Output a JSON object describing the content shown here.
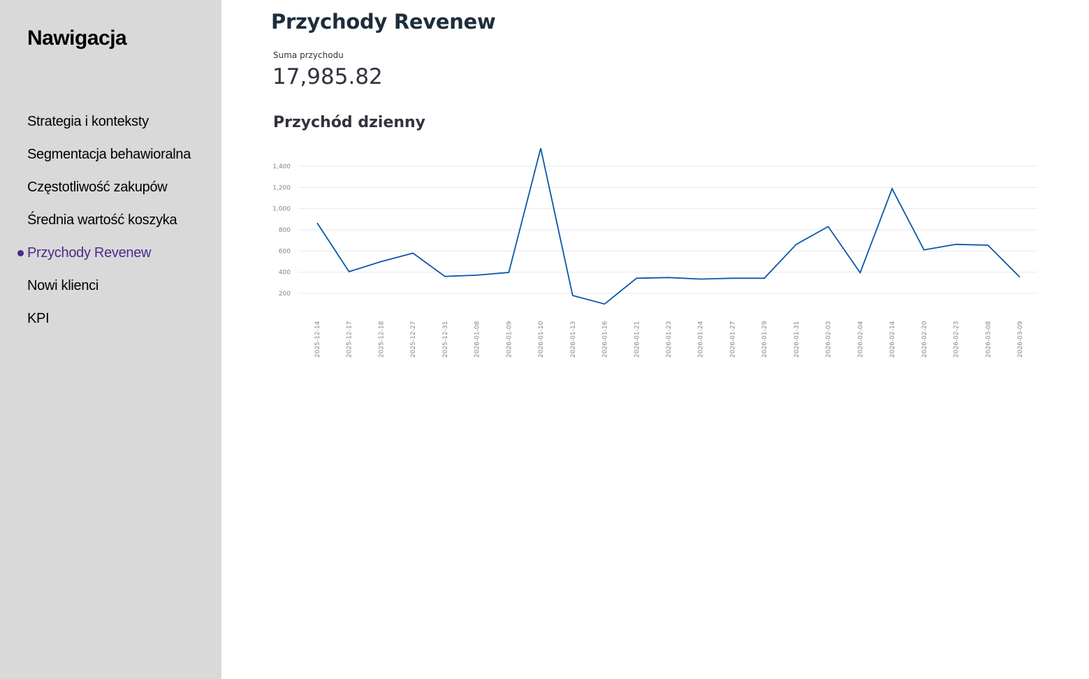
{
  "sidebar": {
    "title": "Nawigacja",
    "items": [
      {
        "label": "Strategia i konteksty",
        "active": false
      },
      {
        "label": "Segmentacja behawioralna",
        "active": false
      },
      {
        "label": "Częstotliwość zakupów",
        "active": false
      },
      {
        "label": "Średnia wartość koszyka",
        "active": false
      },
      {
        "label": "Przychody Revenew",
        "active": true
      },
      {
        "label": "Nowi klienci",
        "active": false
      },
      {
        "label": "KPI",
        "active": false
      }
    ]
  },
  "main": {
    "title": "Przychody Revenew",
    "metric": {
      "label": "Suma przychodu",
      "value": "17,985.82"
    }
  },
  "colors": {
    "sidebar_bg": "#d9d9d9",
    "active_nav": "#4b2a8a",
    "line": "#0b57a8"
  },
  "chart_data": {
    "type": "line",
    "title": "Przychód dzienny",
    "xlabel": "",
    "ylabel": "",
    "ylim": [
      100,
      1550
    ],
    "yticks": [
      200,
      400,
      600,
      800,
      1000,
      1200,
      1400
    ],
    "ytick_labels": [
      "200",
      "400",
      "600",
      "800",
      "1,000",
      "1,200",
      "1,400"
    ],
    "grid": true,
    "categories": [
      "2025-12-14",
      "2025-12-17",
      "2025-12-18",
      "2025-12-27",
      "2025-12-31",
      "2026-01-08",
      "2026-01-09",
      "2026-01-10",
      "2026-01-13",
      "2026-01-16",
      "2026-01-21",
      "2026-01-23",
      "2026-01-24",
      "2026-01-27",
      "2026-01-29",
      "2026-01-31",
      "2026-02-03",
      "2026-02-04",
      "2026-02-14",
      "2026-02-20",
      "2026-02-23",
      "2026-03-08",
      "2026-03-09"
    ],
    "series": [
      {
        "values": [
          865,
          405,
          500,
          580,
          360,
          372,
          398,
          1570,
          180,
          100,
          343,
          350,
          335,
          343,
          343,
          663,
          830,
          395,
          1188,
          610,
          663,
          655,
          353
        ]
      }
    ]
  }
}
